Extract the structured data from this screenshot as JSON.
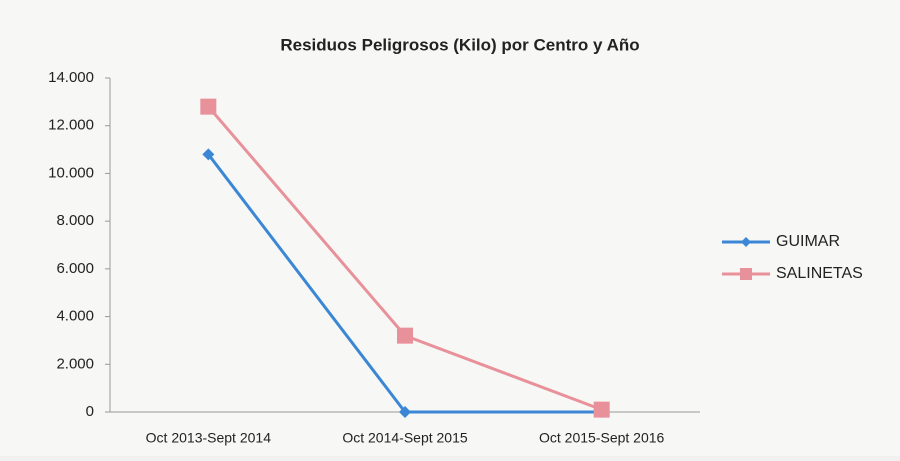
{
  "chart_data": {
    "type": "line",
    "title": "Residuos Peligrosos (Kilo) por Centro y Año",
    "categories": [
      "Oct 2013-Sept 2014",
      "Oct 2014-Sept 2015",
      "Oct 2015-Sept 2016"
    ],
    "series": [
      {
        "name": "GUIMAR",
        "color": "#3b87d6",
        "values": [
          10800,
          0,
          0
        ]
      },
      {
        "name": "SALINETAS",
        "color": "#e8919b",
        "values": [
          12800,
          3200,
          100
        ]
      }
    ],
    "ylim": [
      0,
      14000
    ],
    "yticks": [
      0,
      {
        "value": 2000,
        "label": "2.000"
      },
      {
        "value": 4000,
        "label": "4.000"
      },
      {
        "value": 6000,
        "label": "6.000"
      },
      {
        "value": 8000,
        "label": "8.000"
      },
      {
        "value": 10000,
        "label": "10.000"
      },
      {
        "value": 12000,
        "label": "12.000"
      },
      {
        "value": 14000,
        "label": "14.000"
      }
    ],
    "grid": false,
    "legend": "right"
  }
}
